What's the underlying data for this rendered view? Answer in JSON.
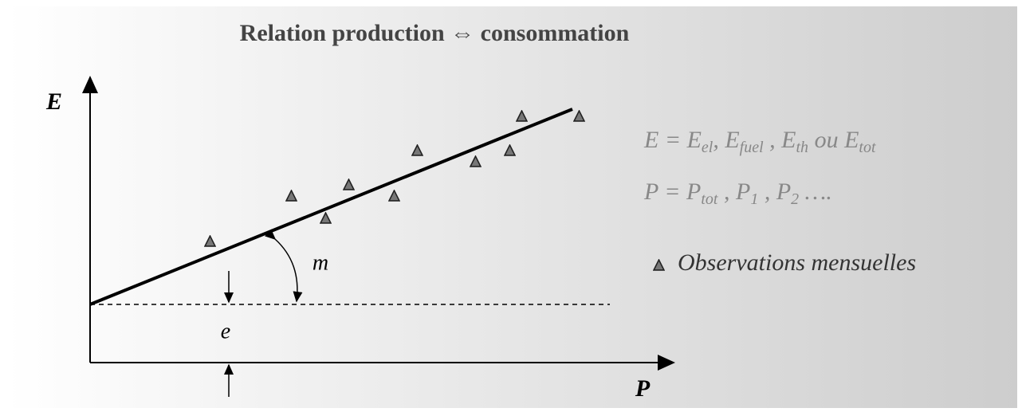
{
  "title": "Relation production ⇔ consommation",
  "axes": {
    "y_label": "E",
    "x_label": "P"
  },
  "annotations": {
    "slope": "m",
    "intercept": "e"
  },
  "equations": [
    [
      {
        "text": "E = E"
      },
      {
        "sub": "el"
      },
      {
        "text": ", E"
      },
      {
        "sub": "fuel"
      },
      {
        "text": " , E"
      },
      {
        "sub": "th"
      },
      {
        "text": " ou E"
      },
      {
        "sub": "tot"
      }
    ],
    [
      {
        "text": "P = P"
      },
      {
        "sub": "tot"
      },
      {
        "text": " , P"
      },
      {
        "sub": "1"
      },
      {
        "text": " , P"
      },
      {
        "sub": "2"
      },
      {
        "text": " …."
      }
    ]
  ],
  "legend": {
    "label": "Observations mensuelles"
  }
}
